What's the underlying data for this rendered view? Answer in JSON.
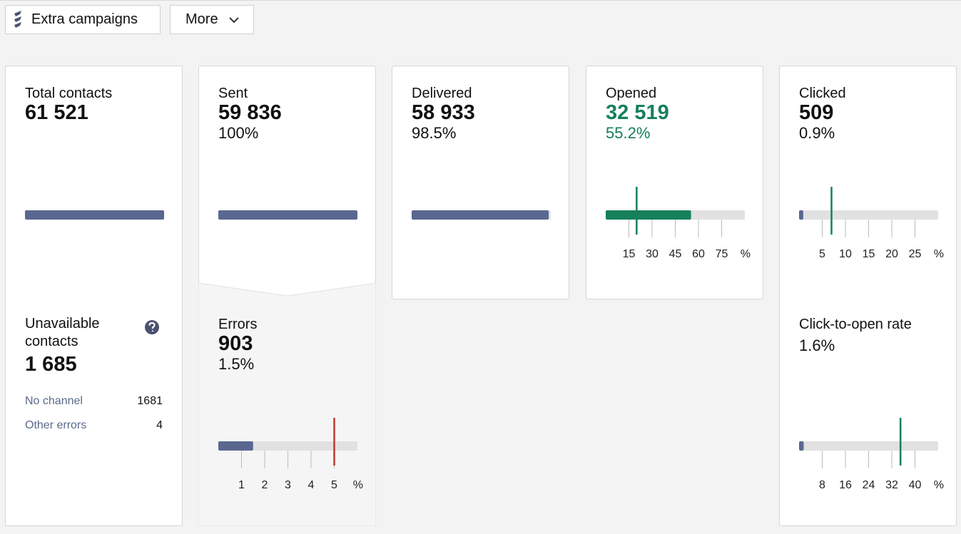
{
  "toolbar": {
    "extra_campaigns": "Extra campaigns",
    "more": "More"
  },
  "cards": [
    {
      "title": "Total contacts",
      "value": "61 521",
      "gauge": {
        "xlim": [
          0,
          100
        ],
        "value": 100,
        "color": "#5a6890"
      },
      "section": {
        "title": "Unavailable contacts",
        "value": "1 685",
        "rows": [
          [
            "No channel",
            "1681"
          ],
          [
            "Other errors",
            "4"
          ]
        ]
      }
    },
    {
      "title": "Sent",
      "value": "59 836",
      "rate": "100%",
      "gauge": {
        "xlim": [
          0,
          100
        ],
        "value": 100,
        "color": "#5a6890"
      },
      "section": {
        "title": "Errors",
        "value": "903",
        "rate": "1.5%",
        "gauge": {
          "xlim": [
            0,
            6
          ],
          "value": 1.5,
          "color": "#5a6890",
          "benchmark": 5,
          "benchmark_color": "#c0392b",
          "xticks": [
            1,
            2,
            3,
            4,
            5
          ],
          "unit": "%"
        }
      }
    },
    {
      "title": "Delivered",
      "value": "58 933",
      "rate": "98.5%",
      "gauge": {
        "xlim": [
          0,
          100
        ],
        "value": 98.5,
        "color": "#5a6890"
      }
    },
    {
      "title": "Opened",
      "value": "32 519",
      "rate": "55.2%",
      "text_color": "#15805a",
      "gauge": {
        "xlim": [
          0,
          90
        ],
        "value": 55.2,
        "color": "#15805a",
        "benchmark": 20,
        "benchmark_color": "#15805a",
        "xticks": [
          15,
          30,
          45,
          60,
          75
        ],
        "unit": "%"
      }
    },
    {
      "title": "Clicked",
      "value": "509",
      "rate": "0.9%",
      "gauge": {
        "xlim": [
          0,
          30
        ],
        "value": 0.9,
        "color": "#5a6890",
        "benchmark": 7,
        "benchmark_color": "#15805a",
        "xticks": [
          5,
          10,
          15,
          20,
          25
        ],
        "unit": "%"
      },
      "section": {
        "title": "Click-to-open rate",
        "rate": "1.6%",
        "gauge": {
          "xlim": [
            0,
            48
          ],
          "value": 1.6,
          "color": "#5a6890",
          "benchmark": 35,
          "benchmark_color": "#15805a",
          "xticks": [
            8,
            16,
            24,
            32,
            40
          ],
          "unit": "%"
        }
      }
    }
  ]
}
